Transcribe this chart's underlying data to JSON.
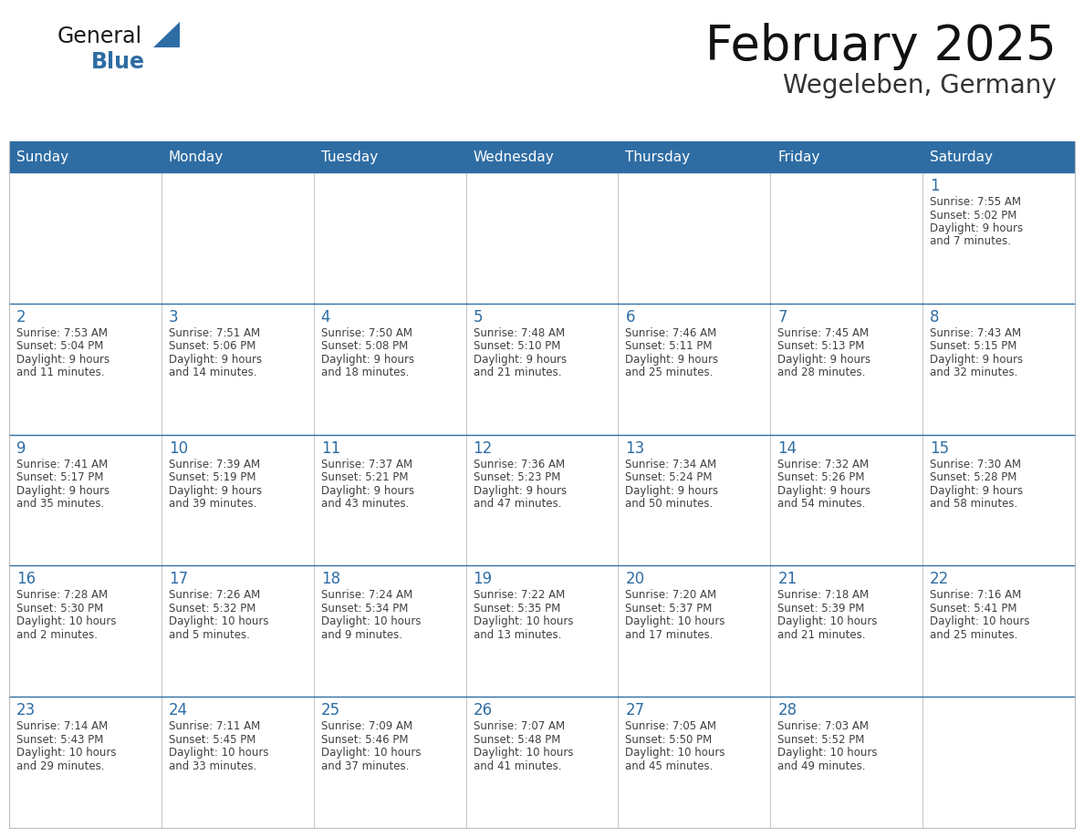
{
  "title": "February 2025",
  "subtitle": "Wegeleben, Germany",
  "header_bg": "#2E6DA4",
  "header_text_color": "#FFFFFF",
  "cell_bg": "#FFFFFF",
  "day_number_color": "#2E6DA4",
  "detail_text_color": "#404040",
  "grid_line_color": "#BBBBBB",
  "row_line_color": "#2E6DA4",
  "days_of_week": [
    "Sunday",
    "Monday",
    "Tuesday",
    "Wednesday",
    "Thursday",
    "Friday",
    "Saturday"
  ],
  "logo_general_color": "#1a1a1a",
  "logo_blue_color": "#2E6DA4",
  "calendar_data": [
    [
      {
        "day": null,
        "info": ""
      },
      {
        "day": null,
        "info": ""
      },
      {
        "day": null,
        "info": ""
      },
      {
        "day": null,
        "info": ""
      },
      {
        "day": null,
        "info": ""
      },
      {
        "day": null,
        "info": ""
      },
      {
        "day": 1,
        "info": "Sunrise: 7:55 AM\nSunset: 5:02 PM\nDaylight: 9 hours\nand 7 minutes."
      }
    ],
    [
      {
        "day": 2,
        "info": "Sunrise: 7:53 AM\nSunset: 5:04 PM\nDaylight: 9 hours\nand 11 minutes."
      },
      {
        "day": 3,
        "info": "Sunrise: 7:51 AM\nSunset: 5:06 PM\nDaylight: 9 hours\nand 14 minutes."
      },
      {
        "day": 4,
        "info": "Sunrise: 7:50 AM\nSunset: 5:08 PM\nDaylight: 9 hours\nand 18 minutes."
      },
      {
        "day": 5,
        "info": "Sunrise: 7:48 AM\nSunset: 5:10 PM\nDaylight: 9 hours\nand 21 minutes."
      },
      {
        "day": 6,
        "info": "Sunrise: 7:46 AM\nSunset: 5:11 PM\nDaylight: 9 hours\nand 25 minutes."
      },
      {
        "day": 7,
        "info": "Sunrise: 7:45 AM\nSunset: 5:13 PM\nDaylight: 9 hours\nand 28 minutes."
      },
      {
        "day": 8,
        "info": "Sunrise: 7:43 AM\nSunset: 5:15 PM\nDaylight: 9 hours\nand 32 minutes."
      }
    ],
    [
      {
        "day": 9,
        "info": "Sunrise: 7:41 AM\nSunset: 5:17 PM\nDaylight: 9 hours\nand 35 minutes."
      },
      {
        "day": 10,
        "info": "Sunrise: 7:39 AM\nSunset: 5:19 PM\nDaylight: 9 hours\nand 39 minutes."
      },
      {
        "day": 11,
        "info": "Sunrise: 7:37 AM\nSunset: 5:21 PM\nDaylight: 9 hours\nand 43 minutes."
      },
      {
        "day": 12,
        "info": "Sunrise: 7:36 AM\nSunset: 5:23 PM\nDaylight: 9 hours\nand 47 minutes."
      },
      {
        "day": 13,
        "info": "Sunrise: 7:34 AM\nSunset: 5:24 PM\nDaylight: 9 hours\nand 50 minutes."
      },
      {
        "day": 14,
        "info": "Sunrise: 7:32 AM\nSunset: 5:26 PM\nDaylight: 9 hours\nand 54 minutes."
      },
      {
        "day": 15,
        "info": "Sunrise: 7:30 AM\nSunset: 5:28 PM\nDaylight: 9 hours\nand 58 minutes."
      }
    ],
    [
      {
        "day": 16,
        "info": "Sunrise: 7:28 AM\nSunset: 5:30 PM\nDaylight: 10 hours\nand 2 minutes."
      },
      {
        "day": 17,
        "info": "Sunrise: 7:26 AM\nSunset: 5:32 PM\nDaylight: 10 hours\nand 5 minutes."
      },
      {
        "day": 18,
        "info": "Sunrise: 7:24 AM\nSunset: 5:34 PM\nDaylight: 10 hours\nand 9 minutes."
      },
      {
        "day": 19,
        "info": "Sunrise: 7:22 AM\nSunset: 5:35 PM\nDaylight: 10 hours\nand 13 minutes."
      },
      {
        "day": 20,
        "info": "Sunrise: 7:20 AM\nSunset: 5:37 PM\nDaylight: 10 hours\nand 17 minutes."
      },
      {
        "day": 21,
        "info": "Sunrise: 7:18 AM\nSunset: 5:39 PM\nDaylight: 10 hours\nand 21 minutes."
      },
      {
        "day": 22,
        "info": "Sunrise: 7:16 AM\nSunset: 5:41 PM\nDaylight: 10 hours\nand 25 minutes."
      }
    ],
    [
      {
        "day": 23,
        "info": "Sunrise: 7:14 AM\nSunset: 5:43 PM\nDaylight: 10 hours\nand 29 minutes."
      },
      {
        "day": 24,
        "info": "Sunrise: 7:11 AM\nSunset: 5:45 PM\nDaylight: 10 hours\nand 33 minutes."
      },
      {
        "day": 25,
        "info": "Sunrise: 7:09 AM\nSunset: 5:46 PM\nDaylight: 10 hours\nand 37 minutes."
      },
      {
        "day": 26,
        "info": "Sunrise: 7:07 AM\nSunset: 5:48 PM\nDaylight: 10 hours\nand 41 minutes."
      },
      {
        "day": 27,
        "info": "Sunrise: 7:05 AM\nSunset: 5:50 PM\nDaylight: 10 hours\nand 45 minutes."
      },
      {
        "day": 28,
        "info": "Sunrise: 7:03 AM\nSunset: 5:52 PM\nDaylight: 10 hours\nand 49 minutes."
      },
      {
        "day": null,
        "info": ""
      }
    ]
  ]
}
